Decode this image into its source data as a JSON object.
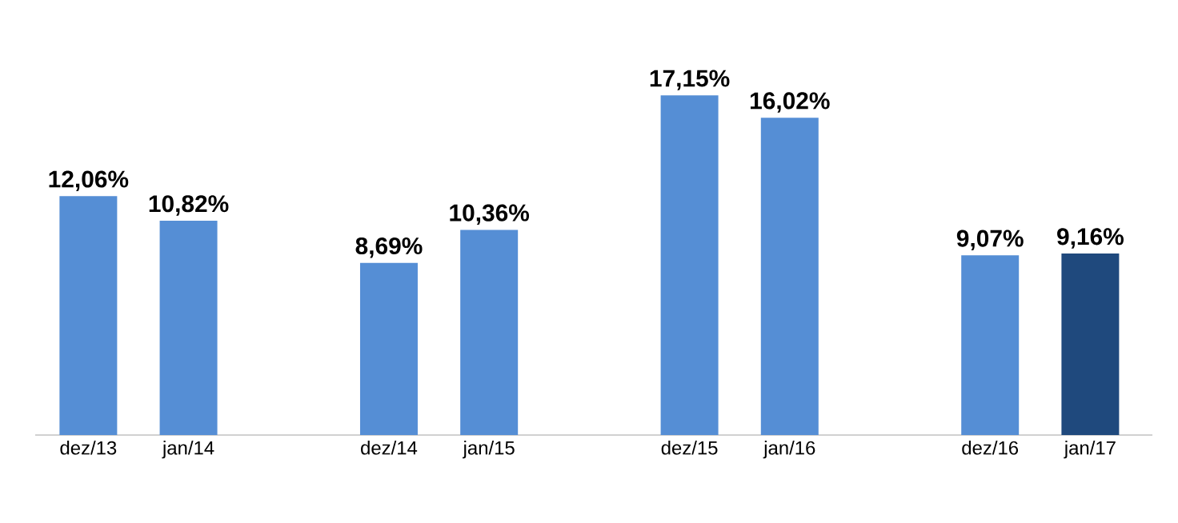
{
  "chart_data": {
    "type": "bar",
    "categories": [
      "dez/13",
      "jan/14",
      null,
      "dez/14",
      "jan/15",
      null,
      "dez/15",
      "jan/16",
      null,
      "dez/16",
      "jan/17"
    ],
    "values": [
      12.06,
      10.82,
      null,
      8.69,
      10.36,
      null,
      17.15,
      16.02,
      null,
      9.07,
      9.16
    ],
    "colors": [
      "#558ed5",
      "#558ed5",
      null,
      "#558ed5",
      "#558ed5",
      null,
      "#558ed5",
      "#558ed5",
      null,
      "#558ed5",
      "#1f497d"
    ],
    "value_labels": [
      "12,06%",
      "10,82%",
      null,
      "8,69%",
      "10,36%",
      null,
      "17,15%",
      "16,02%",
      null,
      "9,07%",
      "9,16%"
    ]
  }
}
